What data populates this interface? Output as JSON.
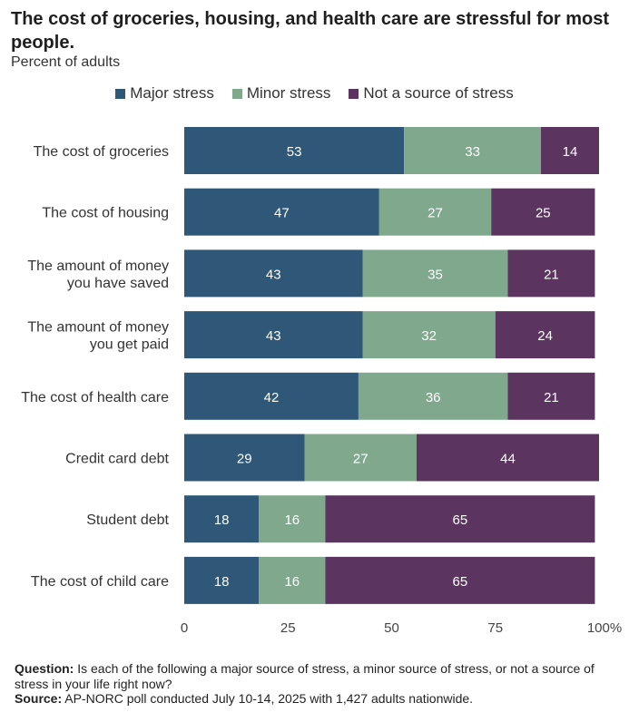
{
  "title": "The cost of groceries, housing, and health care are stressful for most people.",
  "subtitle": "Percent of adults",
  "chart_data": {
    "type": "bar",
    "orientation": "horizontal",
    "stacked": true,
    "categories": [
      "The cost of groceries",
      "The cost of housing",
      "The amount of money you have saved",
      "The amount of money you get paid",
      "The cost of health care",
      "Credit card debt",
      "Student debt",
      "The cost of child care"
    ],
    "category_lines": [
      [
        "The cost of groceries"
      ],
      [
        "The cost of housing"
      ],
      [
        "The amount of money",
        "you have saved"
      ],
      [
        "The amount of money",
        "you get paid"
      ],
      [
        "The cost of health care"
      ],
      [
        "Credit card debt"
      ],
      [
        "Student debt"
      ],
      [
        "The cost of child care"
      ]
    ],
    "series": [
      {
        "name": "Major stress",
        "color": "#2e5778",
        "values": [
          53,
          47,
          43,
          43,
          42,
          29,
          18,
          18
        ]
      },
      {
        "name": "Minor stress",
        "color": "#7fa88c",
        "values": [
          33,
          27,
          35,
          32,
          36,
          27,
          16,
          16
        ]
      },
      {
        "name": "Not a source of stress",
        "color": "#5b3560",
        "values": [
          14,
          25,
          21,
          24,
          21,
          44,
          65,
          65
        ]
      }
    ],
    "xlim": [
      0,
      100
    ],
    "xticks": [
      "0",
      "25",
      "50",
      "75",
      "100%"
    ],
    "legend_position": "top-center",
    "grid": false
  },
  "footer": {
    "question_label": "Question:",
    "question_text": " Is each of the following a major source of stress, a minor source of stress, or not a source of stress in your life right now?",
    "source_label": "Source:",
    "source_text": " AP-NORC poll conducted July 10-14, 2025 with 1,427 adults nationwide."
  }
}
